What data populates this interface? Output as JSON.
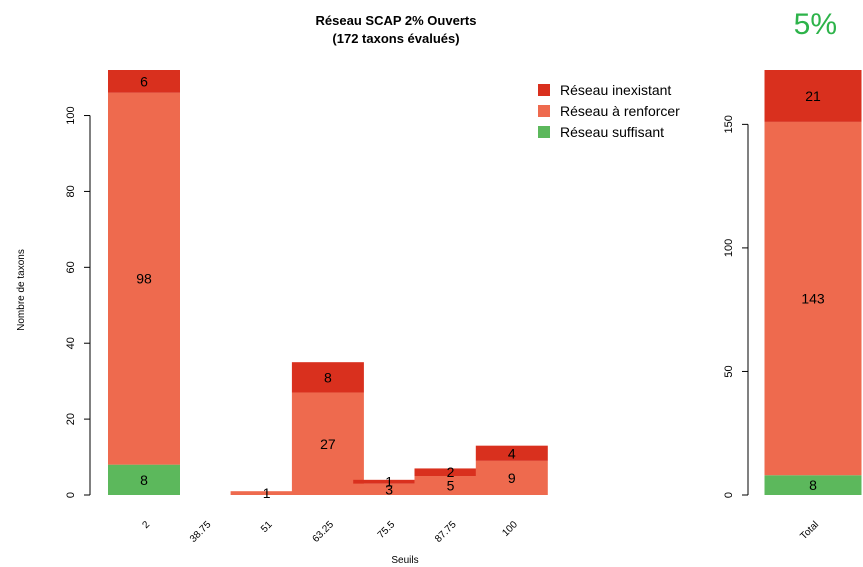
{
  "badge": {
    "text": "5%",
    "color": "#2db34a"
  },
  "chart_data": [
    {
      "type": "bar",
      "stacked": true,
      "title": "Réseau SCAP 2% Ouverts",
      "subtitle": "(172 taxons évalués)",
      "xlabel": "Seuils",
      "ylabel": "Nombre de taxons",
      "ylim": [
        0,
        112
      ],
      "yticks": [
        0,
        20,
        40,
        60,
        80,
        100
      ],
      "categories": [
        "2",
        "38.75",
        "51",
        "63.25",
        "75.5",
        "87.75",
        "100"
      ],
      "series": [
        {
          "name": "Réseau suffisant",
          "color": "#5cb85c",
          "values": [
            8,
            0,
            0,
            0,
            0,
            0,
            0
          ]
        },
        {
          "name": "Réseau à renforcer",
          "color": "#ee6a4e",
          "values": [
            98,
            0,
            1,
            27,
            3,
            5,
            9
          ]
        },
        {
          "name": "Réseau inexistant",
          "color": "#d9301e",
          "values": [
            6,
            0,
            0,
            8,
            1,
            2,
            4
          ]
        }
      ],
      "data_labels": [
        [
          "8",
          "",
          "",
          "",
          "",
          "",
          ""
        ],
        [
          "98",
          "",
          "1",
          "27",
          "3",
          "5",
          "9"
        ],
        [
          "6",
          "",
          "",
          "8",
          "1",
          "2",
          "4"
        ]
      ],
      "legend": {
        "position": "top-right",
        "entries": [
          "Réseau inexistant",
          "Réseau à renforcer",
          "Réseau suffisant"
        ]
      }
    },
    {
      "type": "bar",
      "stacked": true,
      "ylim": [
        0,
        172
      ],
      "yticks": [
        0,
        50,
        100,
        150
      ],
      "categories": [
        "Total"
      ],
      "series": [
        {
          "name": "Réseau suffisant",
          "color": "#5cb85c",
          "values": [
            8
          ]
        },
        {
          "name": "Réseau à renforcer",
          "color": "#ee6a4e",
          "values": [
            143
          ]
        },
        {
          "name": "Réseau inexistant",
          "color": "#d9301e",
          "values": [
            21
          ]
        }
      ],
      "data_labels": [
        [
          "8"
        ],
        [
          "143"
        ],
        [
          "21"
        ]
      ]
    }
  ]
}
